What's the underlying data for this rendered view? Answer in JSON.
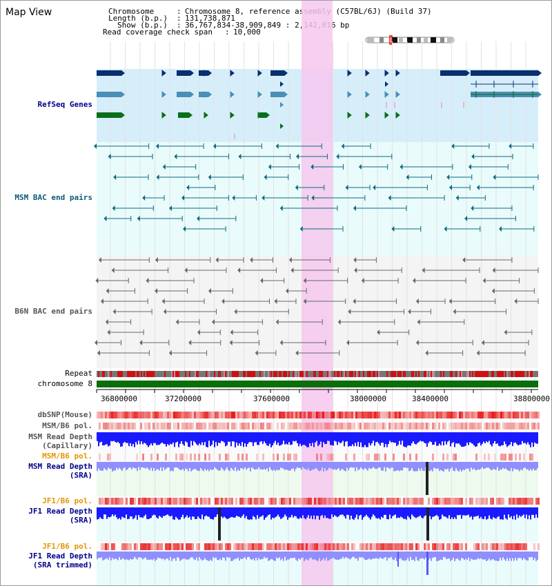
{
  "header": {
    "title": "Map View",
    "chromosome_key": "Chromosome",
    "chromosome_val": "Chromosome 8, reference assembly (C57BL/6J) (Build 37)",
    "length_key": "Length (b.p.)",
    "length_val": "131,738,871",
    "show_key": "Show (b.p.)",
    "show_val": "36,767,834-38,909,849 : 2,142,016 bp",
    "coverage_key": "Read coverage check span",
    "coverage_val": "10,000"
  },
  "tracks": {
    "refseq": "RefSeq Genes",
    "msm_bac": "MSM BAC end pairs",
    "b6n_bac": "B6N BAC end pairs",
    "repeat": "Repeat",
    "chromosome": "chromosome 8",
    "dbsnp": "dbSNP(Mouse)",
    "msm_b6_pol_1": "MSM/B6 pol.",
    "msm_depth_cap_1": "MSM Read Depth",
    "msm_depth_cap_2": "(Capillary)",
    "msm_b6_pol_2": "MSM/B6 pol.",
    "msm_depth_sra_1": "MSM Read Depth",
    "msm_depth_sra_2": "(SRA)",
    "jf1_b6_pol_1": "JF1/B6 pol.",
    "jf1_depth_sra_1": "JF1 Read Depth",
    "jf1_depth_sra_2": "(SRA)",
    "jf1_b6_pol_2": "JF1/B6 pol.",
    "jf1_depth_trim_1": "JF1 Read Depth",
    "jf1_depth_trim_2": "(SRA trimmed)"
  },
  "scale": {
    "ticks": [
      "36800000",
      "37200000",
      "37600000",
      "38000000",
      "38400000",
      "38800000"
    ]
  },
  "colors": {
    "highlight": "#f6c8ee",
    "refseq_bg": "#d6eefa",
    "bac_bg": "#e9fbfb",
    "b6n_bg": "#f4f4f4",
    "gene_dark": "#0a2f6e",
    "gene_mid": "#4a8fb4",
    "gene_green": "#0a6e1a",
    "depth_blue": "#1a1aff",
    "depth_light": "#8f8fff",
    "chrom_green": "#0a6e0a"
  }
}
